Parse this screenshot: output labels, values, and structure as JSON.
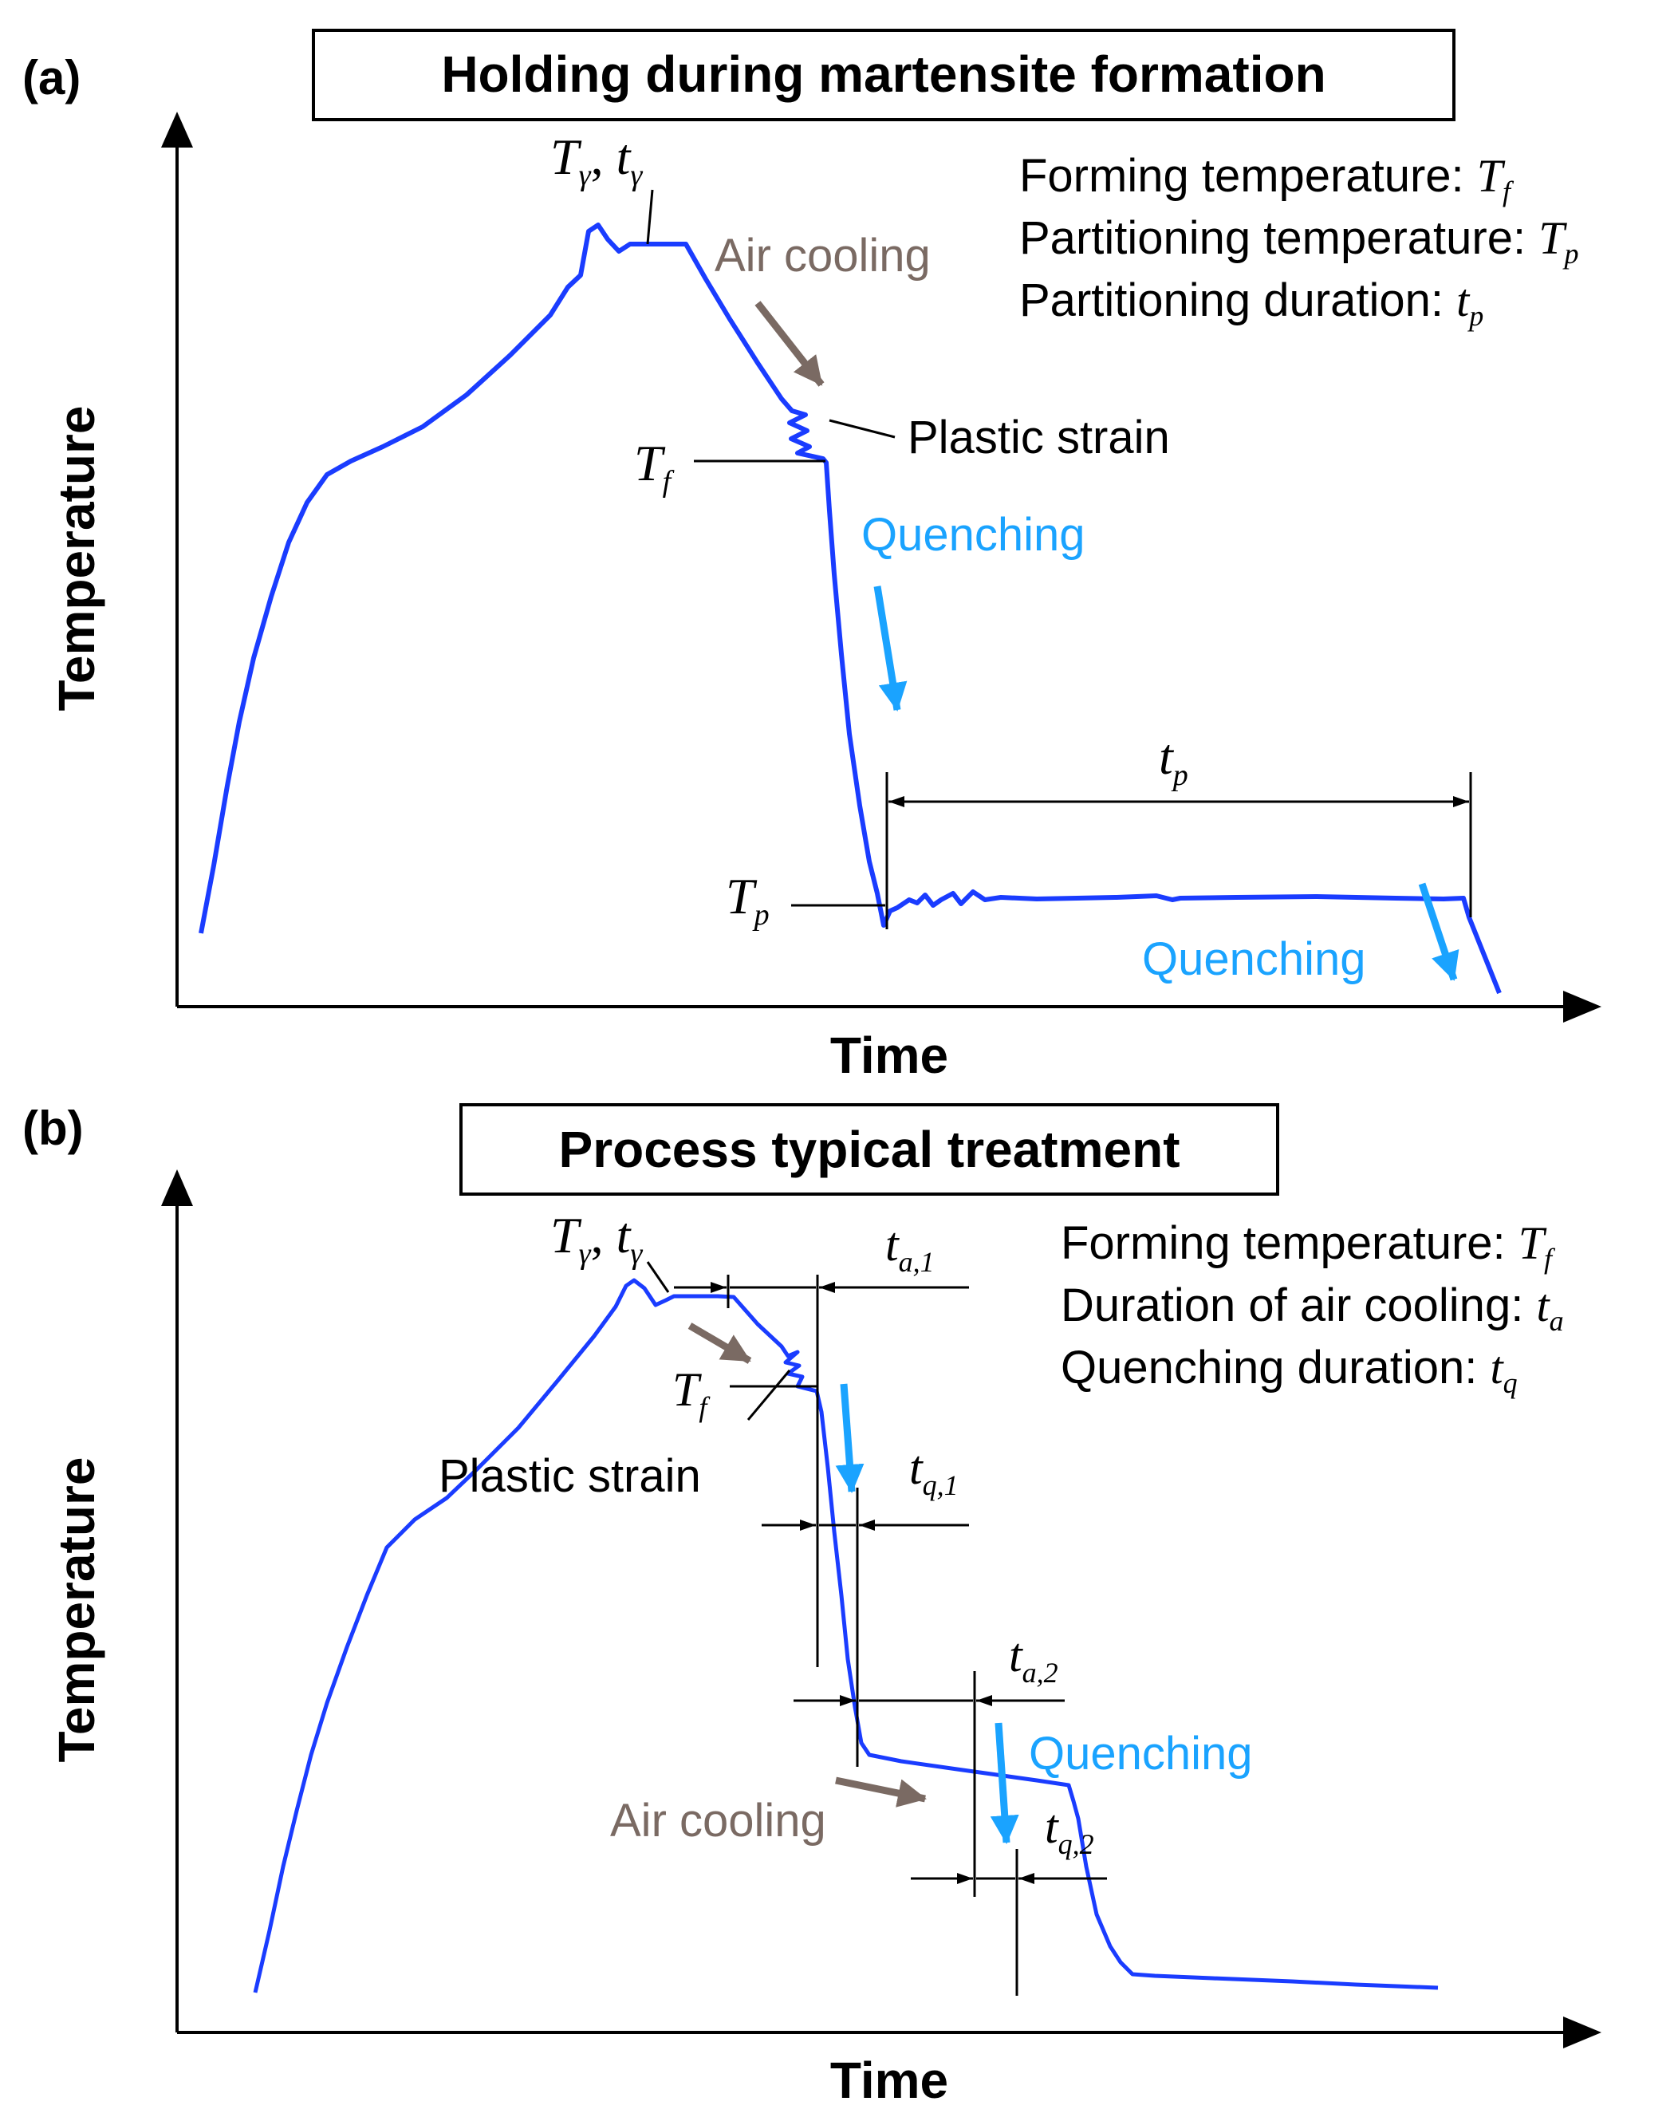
{
  "colors": {
    "curve": "#1a3cff",
    "quench": "#1aa3ff",
    "air": "#7a6a63",
    "ink": "#000000"
  },
  "panel_a": {
    "letter": "(a)",
    "title": "Holding during martensite formation",
    "y_axis_label": "Temperature",
    "x_axis_label": "Time",
    "label_T_gamma": "T",
    "label_T_gamma_sub": "γ",
    "label_t_gamma": "t",
    "label_t_gamma_sub": "γ",
    "air_cooling": "Air cooling",
    "plastic_strain": "Plastic strain",
    "quenching_1": "Quenching",
    "quenching_2": "Quenching",
    "label_Tf": "T",
    "label_Tf_sub": "f",
    "label_Tp": "T",
    "label_Tp_sub": "p",
    "label_tp": "t",
    "label_tp_sub": "p",
    "legend_lines": [
      {
        "text": "Forming temperature: ",
        "sym": "T",
        "sub": "f"
      },
      {
        "text": "Partitioning temperature: ",
        "sym": "T",
        "sub": "p"
      },
      {
        "text": "Partitioning duration: ",
        "sym": "t",
        "sub": "p"
      }
    ]
  },
  "panel_b": {
    "letter": "(b)",
    "title": "Process typical treatment",
    "y_axis_label": "Temperature",
    "x_axis_label": "Time",
    "label_T_gamma": "T",
    "label_T_gamma_sub": "γ",
    "label_t_gamma": "t",
    "label_t_gamma_sub": "γ",
    "label_Tf": "T",
    "label_Tf_sub": "f",
    "plastic_strain": "Plastic strain",
    "air_cooling": "Air cooling",
    "quenching": "Quenching",
    "label_ta1": "t",
    "label_ta1_sub": "a,1",
    "label_tq1": "t",
    "label_tq1_sub": "q,1",
    "label_ta2": "t",
    "label_ta2_sub": "a,2",
    "label_tq2": "t",
    "label_tq2_sub": "q,2",
    "legend_lines": [
      {
        "text": "Forming temperature: ",
        "sym": "T",
        "sub": "f"
      },
      {
        "text": "Duration of air cooling: ",
        "sym": "t",
        "sub": "a"
      },
      {
        "text": "Quenching duration: ",
        "sym": "t",
        "sub": "q"
      }
    ]
  }
}
